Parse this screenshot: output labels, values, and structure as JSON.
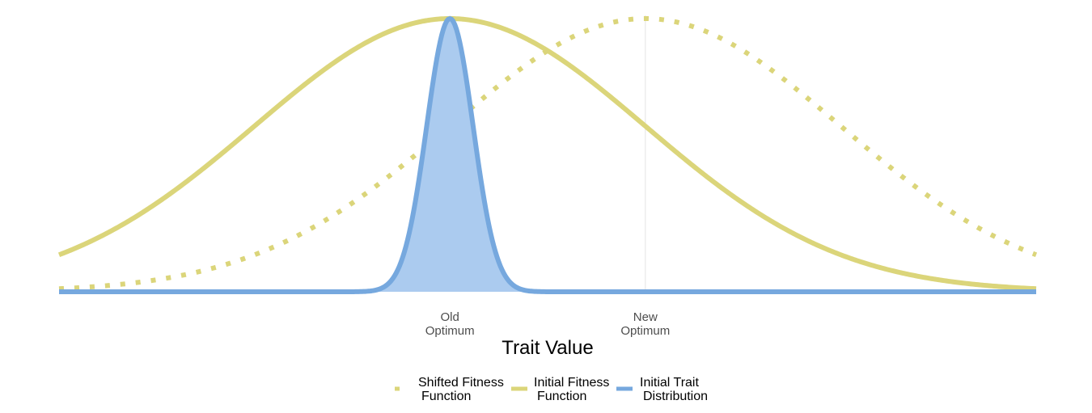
{
  "chart_data": {
    "type": "line",
    "xlabel": "Trait Value",
    "ylabel": "",
    "title": "",
    "xlim": [
      -4,
      4
    ],
    "ylim": [
      0,
      1
    ],
    "grid": "vertical lines at tick positions",
    "legend_position": "bottom",
    "x_ticks": [
      {
        "value": -0.8,
        "label_line1": "Old",
        "label_line2": "Optimum"
      },
      {
        "value": 0.8,
        "label_line1": "New",
        "label_line2": "Optimum"
      }
    ],
    "series": [
      {
        "name_line1": "Shifted Fitness",
        "name_line2": "Function",
        "kind": "gaussian",
        "mean": 0.8,
        "sd": 1.6,
        "peak": 1.0,
        "style": "dotted",
        "color": "#dbd57a"
      },
      {
        "name_line1": "Initial Fitness",
        "name_line2": "Function",
        "kind": "gaussian",
        "mean": -0.8,
        "sd": 1.6,
        "peak": 1.0,
        "style": "solid",
        "color": "#dbd57a"
      },
      {
        "name_line1": "Initial Trait",
        "name_line2": "Distribution",
        "kind": "gaussian",
        "mean": -0.8,
        "sd": 0.19,
        "peak": 1.0,
        "style": "solid-filled",
        "color": "#76a8de",
        "fill": "#abcbef"
      }
    ]
  }
}
